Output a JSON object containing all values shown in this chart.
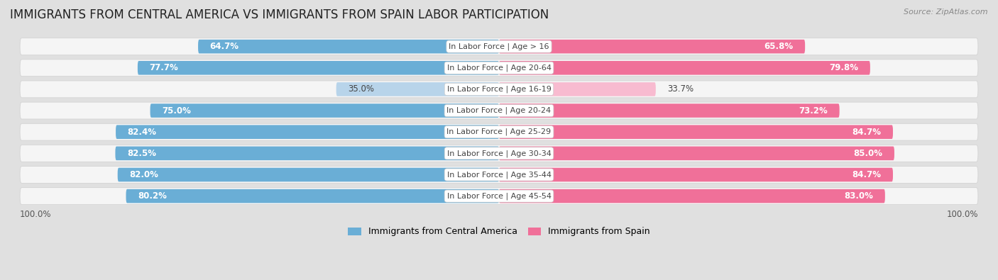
{
  "title": "IMMIGRANTS FROM CENTRAL AMERICA VS IMMIGRANTS FROM SPAIN LABOR PARTICIPATION",
  "source": "Source: ZipAtlas.com",
  "categories": [
    "In Labor Force | Age > 16",
    "In Labor Force | Age 20-64",
    "In Labor Force | Age 16-19",
    "In Labor Force | Age 20-24",
    "In Labor Force | Age 25-29",
    "In Labor Force | Age 30-34",
    "In Labor Force | Age 35-44",
    "In Labor Force | Age 45-54"
  ],
  "central_america": [
    64.7,
    77.7,
    35.0,
    75.0,
    82.4,
    82.5,
    82.0,
    80.2
  ],
  "spain": [
    65.8,
    79.8,
    33.7,
    73.2,
    84.7,
    85.0,
    84.7,
    83.0
  ],
  "color_central": "#6aaed6",
  "color_spain": "#f07099",
  "color_central_light": "#b8d4ea",
  "color_spain_light": "#f8bbd0",
  "bg_color": "#e0e0e0",
  "row_bg": "#f5f5f5",
  "legend_central": "Immigrants from Central America",
  "legend_spain": "Immigrants from Spain",
  "title_fontsize": 12,
  "label_fontsize": 8.5,
  "cat_fontsize": 8,
  "bar_height": 0.65,
  "threshold_light": 50
}
